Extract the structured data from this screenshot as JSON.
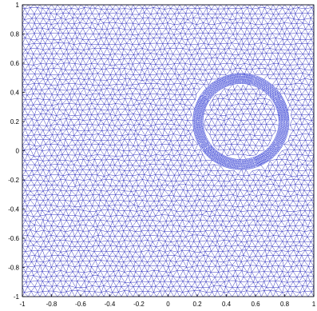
{
  "figure": {
    "description_type": "triangular-mesh",
    "mesh_color": "#1a1ab8",
    "ring_color": "#2430d0",
    "axis_color": "#000000"
  },
  "chart_data": {
    "type": "mesh",
    "xlim": [
      -1,
      1
    ],
    "ylim": [
      -1,
      1
    ],
    "xticks": [
      "-1",
      "-0.8",
      "-0.6",
      "-0.4",
      "-0.2",
      "0",
      "0.2",
      "0.4",
      "0.6",
      "0.8",
      "1"
    ],
    "yticks": [
      "1",
      "0.8",
      "0.6",
      "0.4",
      "0.2",
      "0",
      "-0.2",
      "-0.4",
      "-0.6",
      "-0.8",
      "-1"
    ],
    "xtick_values": [
      -1,
      -0.8,
      -0.6,
      -0.4,
      -0.2,
      0,
      0.2,
      0.4,
      0.6,
      0.8,
      1
    ],
    "ytick_values": [
      1,
      0.8,
      0.6,
      0.4,
      0.2,
      0,
      -0.2,
      -0.4,
      -0.6,
      -0.8,
      -1
    ],
    "refined_ring": {
      "center": [
        0.5,
        0.2
      ],
      "inner_radius": 0.26,
      "outer_radius": 0.33
    },
    "mesh_spacing": 0.04,
    "ring_spacing": 0.012,
    "grid": false
  }
}
